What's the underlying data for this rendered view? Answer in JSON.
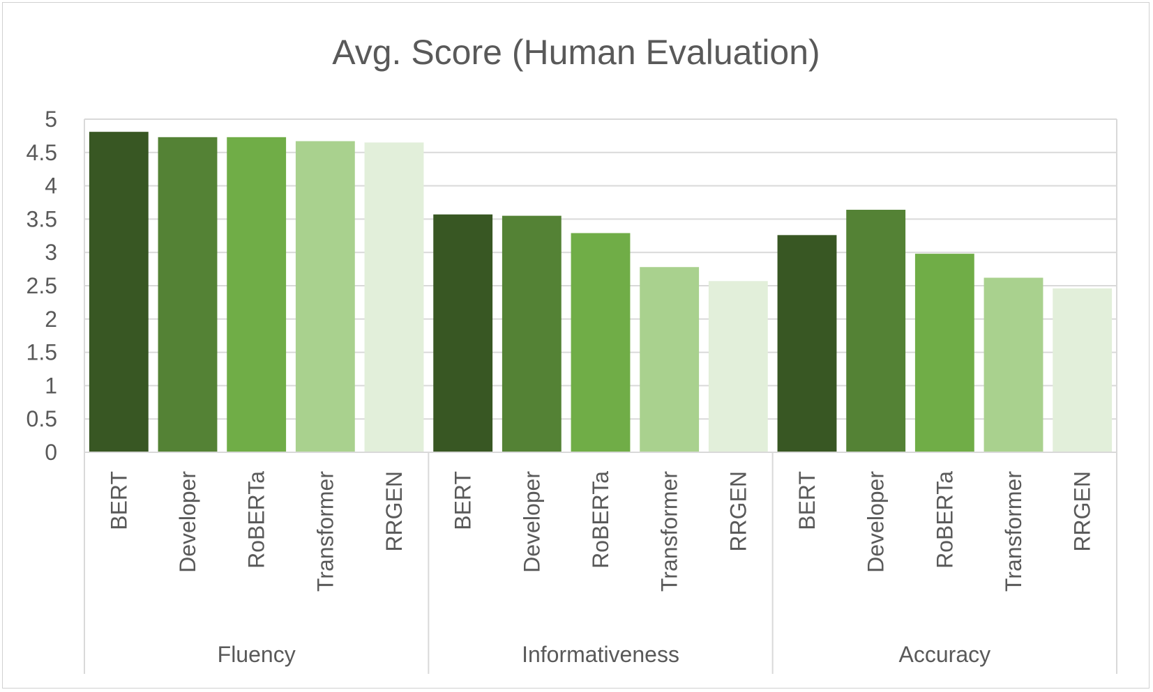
{
  "chart_data": {
    "type": "bar",
    "title": "Avg. Score (Human Evaluation)",
    "xlabel": "",
    "ylabel": "",
    "ylim": [
      0,
      5
    ],
    "y_ticks": [
      "0",
      "0.5",
      "1",
      "1.5",
      "2",
      "2.5",
      "3",
      "3.5",
      "4",
      "4.5",
      "5"
    ],
    "grid": true,
    "legend": "none",
    "groups": [
      {
        "name": "Fluency",
        "categories": [
          "BERT",
          "Developer",
          "RoBERTa",
          "Transformer",
          "RRGEN"
        ],
        "values": [
          4.81,
          4.73,
          4.73,
          4.67,
          4.65
        ]
      },
      {
        "name": "Informativeness",
        "categories": [
          "BERT",
          "Developer",
          "RoBERTa",
          "Transformer",
          "RRGEN"
        ],
        "values": [
          3.57,
          3.55,
          3.29,
          2.78,
          2.57
        ]
      },
      {
        "name": "Accuracy",
        "categories": [
          "BERT",
          "Developer",
          "RoBERTa",
          "Transformer",
          "RRGEN"
        ],
        "values": [
          3.26,
          3.64,
          2.98,
          2.62,
          2.46
        ]
      }
    ],
    "colors": [
      "#385723",
      "#548235",
      "#70ad47",
      "#a9d18e",
      "#e2efda"
    ]
  }
}
